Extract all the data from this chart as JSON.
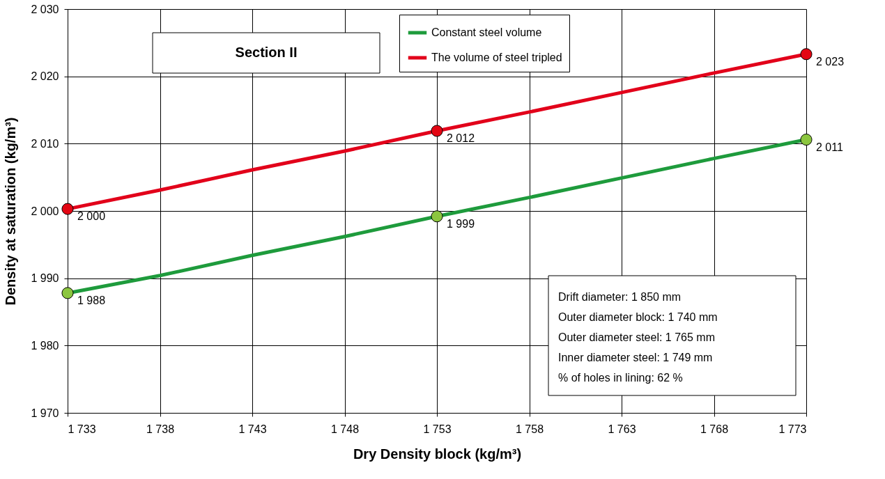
{
  "chart_data": {
    "type": "line",
    "xlabel": "Dry Density block (kg/m³)",
    "ylabel": "Density at saturation (kg/m³)",
    "xlim": [
      1733,
      1773
    ],
    "ylim": [
      1970,
      2030
    ],
    "xticks": [
      {
        "value": 1733,
        "label": "1 733"
      },
      {
        "value": 1738,
        "label": "1 738"
      },
      {
        "value": 1743,
        "label": "1 743"
      },
      {
        "value": 1748,
        "label": "1 748"
      },
      {
        "value": 1753,
        "label": "1 753"
      },
      {
        "value": 1758,
        "label": "1 758"
      },
      {
        "value": 1763,
        "label": "1 763"
      },
      {
        "value": 1768,
        "label": "1 768"
      },
      {
        "value": 1773,
        "label": "1 773"
      }
    ],
    "yticks": [
      {
        "value": 1970,
        "label": "1 970"
      },
      {
        "value": 1980,
        "label": "1 980"
      },
      {
        "value": 1990,
        "label": "1 990"
      },
      {
        "value": 2000,
        "label": "2 000"
      },
      {
        "value": 2010,
        "label": "2 010"
      },
      {
        "value": 2020,
        "label": "2 020"
      },
      {
        "value": 2030,
        "label": "2 030"
      }
    ],
    "grid": true,
    "legend": "top",
    "marker": "none",
    "line_style": "solid",
    "series": [
      {
        "name": "Constant steel volume",
        "color": "#1e9b3c",
        "x": [
          1733,
          1738,
          1743,
          1748,
          1753,
          1758,
          1763,
          1768,
          1773
        ],
        "values": [
          1987.8,
          1990.4,
          1993.4,
          1996.2,
          1999.2,
          2002.0,
          2004.9,
          2007.8,
          2010.6
        ]
      },
      {
        "name": "The volume of steel tripled",
        "color": "#e2001a",
        "x": [
          1733,
          1738,
          1743,
          1748,
          1753,
          1758,
          1763,
          1768,
          1773
        ],
        "values": [
          2000.3,
          2003.1,
          2006.1,
          2008.9,
          2011.9,
          2014.7,
          2017.6,
          2020.5,
          2023.3
        ]
      },
      {
        "type": "scatter",
        "marker": "circle",
        "color": "#8cc63f",
        "x": [
          1733,
          1753,
          1773
        ],
        "values": [
          1987.8,
          1999.2,
          2010.6
        ],
        "value_labels": [
          "1 988",
          "1 999",
          "2 011"
        ]
      },
      {
        "type": "scatter",
        "marker": "circle",
        "color": "#e30613",
        "x": [
          1733,
          1753,
          1773
        ],
        "values": [
          2000.3,
          2011.9,
          2023.3
        ],
        "value_labels": [
          "2 000",
          "2 012",
          "2 023"
        ]
      }
    ],
    "annotations": [
      "Section II",
      "Drift diameter: 1 850 mm",
      "Outer diameter block: 1 740 mm",
      "Outer diameter steel: 1 765 mm",
      "Inner diameter steel: 1 749 mm",
      "% of holes in lining: 62 %"
    ]
  }
}
